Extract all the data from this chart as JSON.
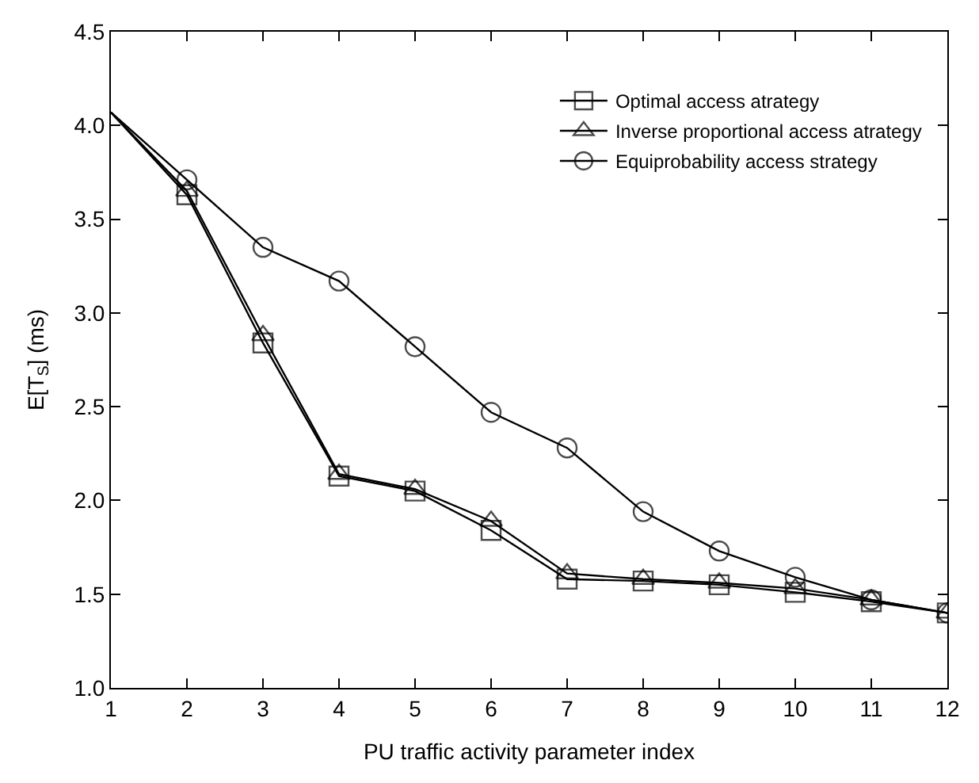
{
  "chart_data": {
    "type": "line",
    "xlabel": "PU traffic activity parameter index",
    "ylabel": "E[T$_{S}$] (ms)",
    "x": [
      1,
      2,
      3,
      4,
      5,
      6,
      7,
      8,
      9,
      10,
      11,
      12
    ],
    "series": [
      {
        "name": "Optimal access atrategy",
        "color": "#000000",
        "marker": "square",
        "values": [
          4.07,
          3.63,
          2.84,
          2.13,
          2.05,
          1.84,
          1.58,
          1.57,
          1.55,
          1.51,
          1.46,
          1.4
        ]
      },
      {
        "name": "Inverse proportional access atrategy",
        "color": "#000000",
        "marker": "triangle",
        "values": [
          4.07,
          3.65,
          2.88,
          2.14,
          2.06,
          1.89,
          1.61,
          1.58,
          1.56,
          1.53,
          1.47,
          1.4
        ]
      },
      {
        "name": "Equiprobability access strategy",
        "color": "#000000",
        "marker": "circle",
        "values": [
          4.07,
          3.71,
          3.35,
          3.17,
          2.82,
          2.47,
          2.28,
          1.94,
          1.73,
          1.59,
          1.47,
          1.4
        ]
      }
    ],
    "xlim": [
      1,
      12
    ],
    "xticks": [
      1,
      2,
      3,
      4,
      5,
      6,
      7,
      8,
      9,
      10,
      11,
      12
    ],
    "ylim": [
      1.0,
      4.5
    ],
    "yticks": [
      {
        "value": 1.0,
        "label": "1.0"
      },
      {
        "value": 1.5,
        "label": "1.5"
      },
      {
        "value": 2.0,
        "label": "2.0"
      },
      {
        "value": 2.5,
        "label": "2.5"
      },
      {
        "value": 3.0,
        "label": "3.0"
      },
      {
        "value": 3.5,
        "label": "3.5"
      },
      {
        "value": 4.0,
        "label": "4.0"
      },
      {
        "value": 4.5,
        "label": "4.5"
      }
    ],
    "legend": "top right",
    "line_style": "solid"
  }
}
